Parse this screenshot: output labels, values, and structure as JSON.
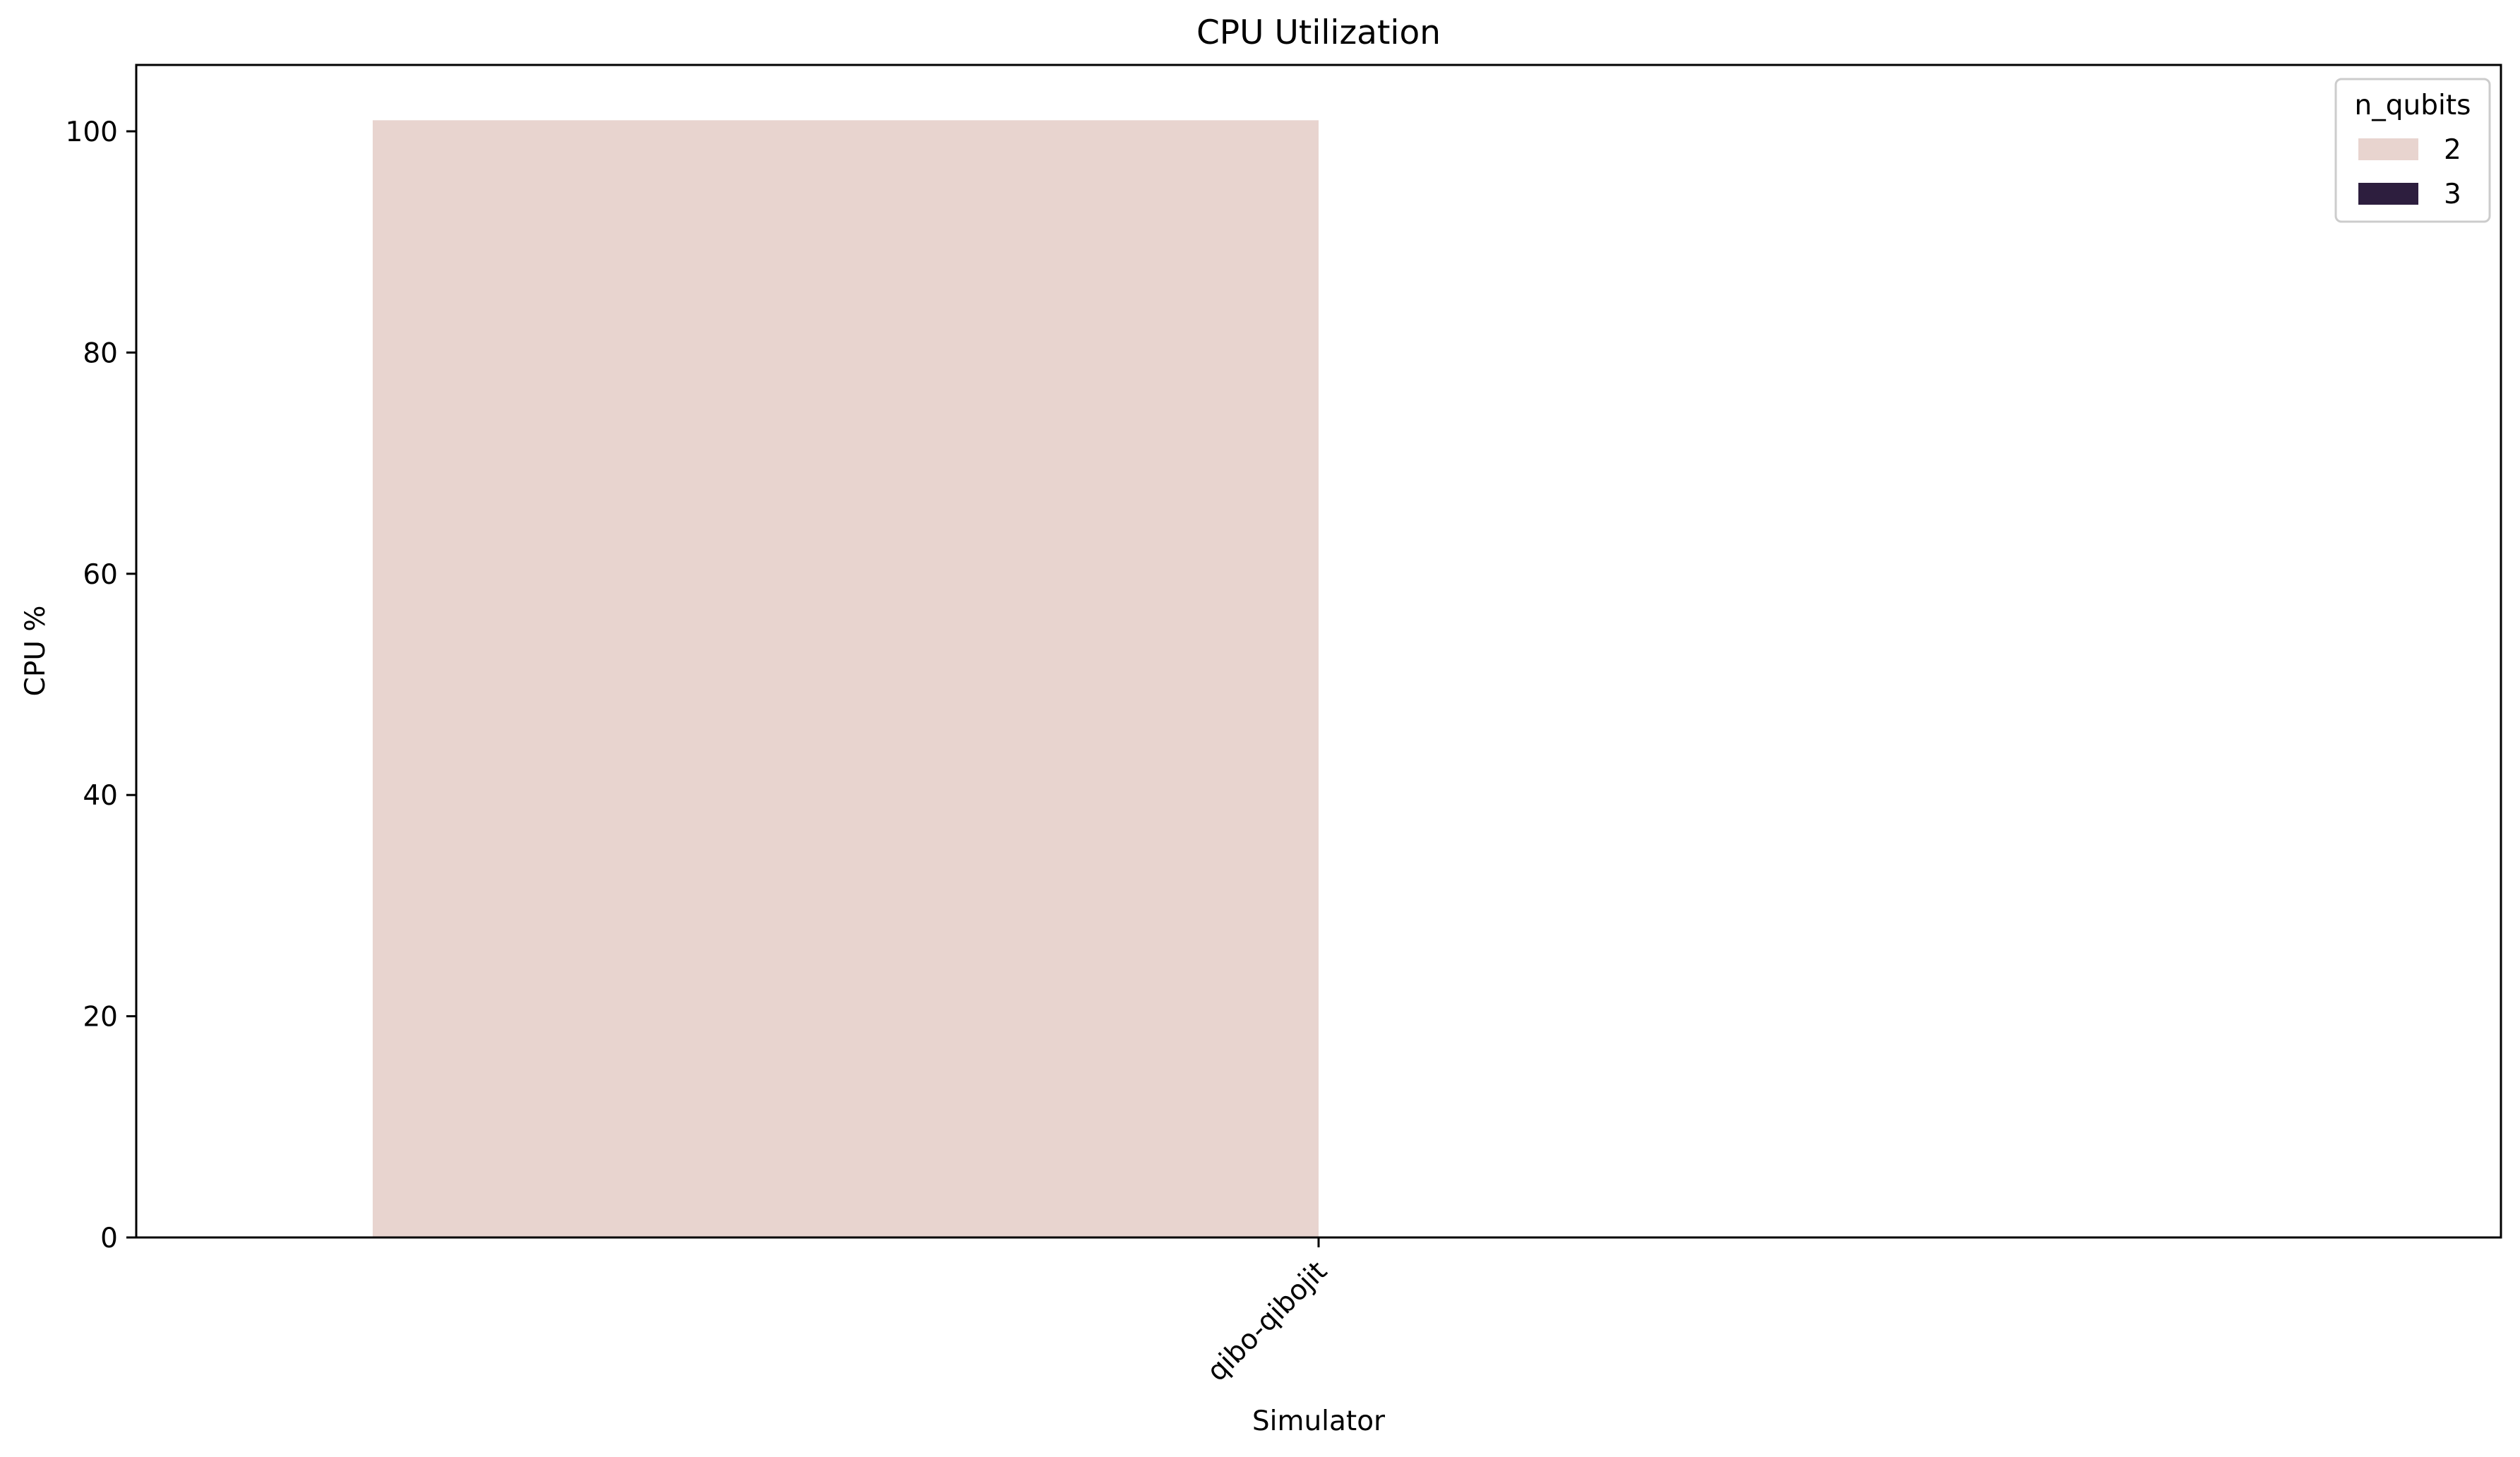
{
  "chart_data": {
    "type": "bar",
    "title": "CPU Utilization",
    "xlabel": "Simulator",
    "ylabel": "CPU %",
    "categories": [
      "qibo-qibojit"
    ],
    "series": [
      {
        "name": "2",
        "values": [
          101.0
        ],
        "color": "#e8d4cf"
      },
      {
        "name": "3",
        "values": [
          null
        ],
        "color": "#2d1e3e"
      }
    ],
    "ylim": [
      0,
      106
    ],
    "yticks": [
      0,
      20,
      40,
      60,
      80,
      100
    ],
    "grid": false,
    "legend": {
      "title": "n_qubits",
      "placement": "top-right"
    }
  }
}
